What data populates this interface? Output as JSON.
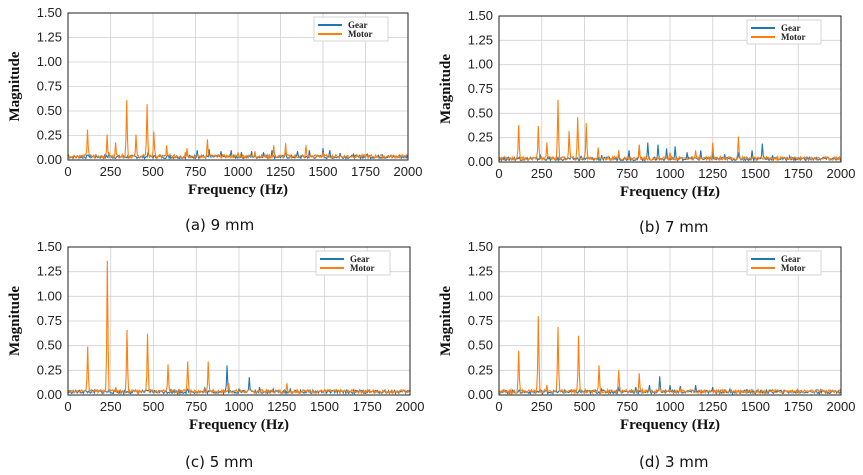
{
  "colors": {
    "gear": "#1f77b4",
    "motor": "#ff7f0e",
    "grid": "#d0d0d0"
  },
  "chart_data": [
    {
      "type": "line",
      "caption": "(a) 9 mm",
      "xlabel": "Frequency (Hz)",
      "ylabel": "Magnitude",
      "xlim": [
        0,
        2000
      ],
      "ylim": [
        0,
        1.5
      ],
      "xticks": [
        "0",
        "250",
        "500",
        "750",
        "1000",
        "1250",
        "1500",
        "1750",
        "2000"
      ],
      "yticks": [
        "0.00",
        "0.25",
        "0.50",
        "0.75",
        "1.00",
        "1.25",
        "1.50"
      ],
      "legend": [
        "Gear",
        "Motor"
      ],
      "legend_position": "top-right",
      "series": [
        {
          "name": "Gear",
          "peaks": [
            [
              120,
              0.05
            ],
            [
              240,
              0.08
            ],
            [
              470,
              0.07
            ],
            [
              600,
              0.05
            ],
            [
              700,
              0.08
            ],
            [
              760,
              0.1
            ],
            [
              830,
              0.11
            ],
            [
              900,
              0.09
            ],
            [
              960,
              0.1
            ],
            [
              1020,
              0.08
            ],
            [
              1080,
              0.09
            ],
            [
              1150,
              0.08
            ],
            [
              1200,
              0.1
            ],
            [
              1280,
              0.11
            ],
            [
              1350,
              0.09
            ],
            [
              1420,
              0.1
            ],
            [
              1500,
              0.12
            ],
            [
              1540,
              0.1
            ],
            [
              1600,
              0.07
            ],
            [
              1680,
              0.06
            ],
            [
              1760,
              0.06
            ],
            [
              1850,
              0.05
            ],
            [
              1950,
              0.05
            ]
          ]
        },
        {
          "name": "Motor",
          "peaks": [
            [
              115,
              0.31
            ],
            [
              230,
              0.26
            ],
            [
              280,
              0.18
            ],
            [
              345,
              0.61
            ],
            [
              400,
              0.26
            ],
            [
              465,
              0.57
            ],
            [
              505,
              0.29
            ],
            [
              580,
              0.15
            ],
            [
              690,
              0.08
            ],
            [
              700,
              0.12
            ],
            [
              820,
              0.21
            ],
            [
              1000,
              0.08
            ],
            [
              1100,
              0.09
            ],
            [
              1210,
              0.15
            ],
            [
              1280,
              0.17
            ],
            [
              1400,
              0.15
            ],
            [
              1500,
              0.08
            ]
          ]
        }
      ]
    },
    {
      "type": "line",
      "caption": "(b) 7 mm",
      "xlabel": "Frequency (Hz)",
      "ylabel": "Magnitude",
      "xlim": [
        0,
        2000
      ],
      "ylim": [
        0,
        1.5
      ],
      "xticks": [
        "0",
        "250",
        "500",
        "750",
        "1000",
        "1250",
        "1500",
        "1750",
        "2000"
      ],
      "yticks": [
        "0.00",
        "0.25",
        "0.50",
        "0.75",
        "1.00",
        "1.25",
        "1.50"
      ],
      "legend": [
        "Gear",
        "Motor"
      ],
      "legend_position": "top-right",
      "series": [
        {
          "name": "Gear",
          "peaks": [
            [
              120,
              0.05
            ],
            [
              240,
              0.08
            ],
            [
              480,
              0.06
            ],
            [
              600,
              0.07
            ],
            [
              700,
              0.08
            ],
            [
              760,
              0.12
            ],
            [
              820,
              0.15
            ],
            [
              870,
              0.2
            ],
            [
              930,
              0.18
            ],
            [
              980,
              0.14
            ],
            [
              1030,
              0.16
            ],
            [
              1100,
              0.1
            ],
            [
              1180,
              0.12
            ],
            [
              1250,
              0.1
            ],
            [
              1320,
              0.08
            ],
            [
              1400,
              0.1
            ],
            [
              1480,
              0.12
            ],
            [
              1540,
              0.19
            ],
            [
              1600,
              0.07
            ],
            [
              1700,
              0.06
            ],
            [
              1800,
              0.05
            ],
            [
              1900,
              0.05
            ]
          ]
        },
        {
          "name": "Motor",
          "peaks": [
            [
              115,
              0.38
            ],
            [
              230,
              0.37
            ],
            [
              280,
              0.2
            ],
            [
              345,
              0.64
            ],
            [
              410,
              0.32
            ],
            [
              460,
              0.46
            ],
            [
              510,
              0.4
            ],
            [
              580,
              0.15
            ],
            [
              700,
              0.12
            ],
            [
              820,
              0.18
            ],
            [
              1000,
              0.1
            ],
            [
              1150,
              0.12
            ],
            [
              1250,
              0.2
            ],
            [
              1400,
              0.26
            ]
          ]
        }
      ]
    },
    {
      "type": "line",
      "caption": "(c) 5 mm",
      "xlabel": "Frequency (Hz)",
      "ylabel": "Magnitude",
      "xlim": [
        0,
        2000
      ],
      "ylim": [
        0,
        1.5
      ],
      "xticks": [
        "0",
        "250",
        "500",
        "750",
        "1000",
        "1250",
        "1500",
        "1750",
        "2000"
      ],
      "yticks": [
        "0.00",
        "0.25",
        "0.50",
        "0.75",
        "1.00",
        "1.25",
        "1.50"
      ],
      "legend": [
        "Gear",
        "Motor"
      ],
      "legend_position": "top-right",
      "series": [
        {
          "name": "Gear",
          "peaks": [
            [
              120,
              0.04
            ],
            [
              240,
              0.06
            ],
            [
              470,
              0.05
            ],
            [
              600,
              0.05
            ],
            [
              700,
              0.06
            ],
            [
              800,
              0.07
            ],
            [
              930,
              0.3
            ],
            [
              1000,
              0.06
            ],
            [
              1060,
              0.18
            ],
            [
              1120,
              0.08
            ],
            [
              1200,
              0.06
            ],
            [
              1300,
              0.06
            ],
            [
              1400,
              0.05
            ],
            [
              1500,
              0.05
            ],
            [
              1600,
              0.04
            ],
            [
              1800,
              0.04
            ]
          ]
        },
        {
          "name": "Motor",
          "peaks": [
            [
              115,
              0.49
            ],
            [
              230,
              1.36
            ],
            [
              280,
              0.08
            ],
            [
              345,
              0.66
            ],
            [
              465,
              0.62
            ],
            [
              585,
              0.31
            ],
            [
              700,
              0.34
            ],
            [
              820,
              0.34
            ],
            [
              940,
              0.12
            ],
            [
              1060,
              0.05
            ],
            [
              1280,
              0.12
            ]
          ]
        }
      ]
    },
    {
      "type": "line",
      "caption": "(d) 3 mm",
      "xlabel": "Frequency (Hz)",
      "ylabel": "Magnitude",
      "xlim": [
        0,
        2000
      ],
      "ylim": [
        0,
        1.5
      ],
      "xticks": [
        "0",
        "250",
        "500",
        "750",
        "1000",
        "1250",
        "1500",
        "1750",
        "2000"
      ],
      "yticks": [
        "0.00",
        "0.25",
        "0.50",
        "0.75",
        "1.00",
        "1.25",
        "1.50"
      ],
      "legend": [
        "Gear",
        "Motor"
      ],
      "legend_position": "top-right",
      "series": [
        {
          "name": "Gear",
          "peaks": [
            [
              120,
              0.04
            ],
            [
              240,
              0.06
            ],
            [
              470,
              0.05
            ],
            [
              600,
              0.06
            ],
            [
              700,
              0.07
            ],
            [
              800,
              0.08
            ],
            [
              880,
              0.1
            ],
            [
              940,
              0.19
            ],
            [
              1000,
              0.1
            ],
            [
              1060,
              0.09
            ],
            [
              1150,
              0.1
            ],
            [
              1250,
              0.08
            ],
            [
              1350,
              0.06
            ],
            [
              1450,
              0.06
            ],
            [
              1580,
              0.05
            ],
            [
              1700,
              0.04
            ],
            [
              1850,
              0.04
            ]
          ]
        },
        {
          "name": "Motor",
          "peaks": [
            [
              115,
              0.45
            ],
            [
              230,
              0.8
            ],
            [
              280,
              0.1
            ],
            [
              345,
              0.69
            ],
            [
              465,
              0.6
            ],
            [
              585,
              0.3
            ],
            [
              700,
              0.25
            ],
            [
              820,
              0.22
            ],
            [
              940,
              0.08
            ],
            [
              1060,
              0.06
            ]
          ]
        }
      ]
    }
  ]
}
